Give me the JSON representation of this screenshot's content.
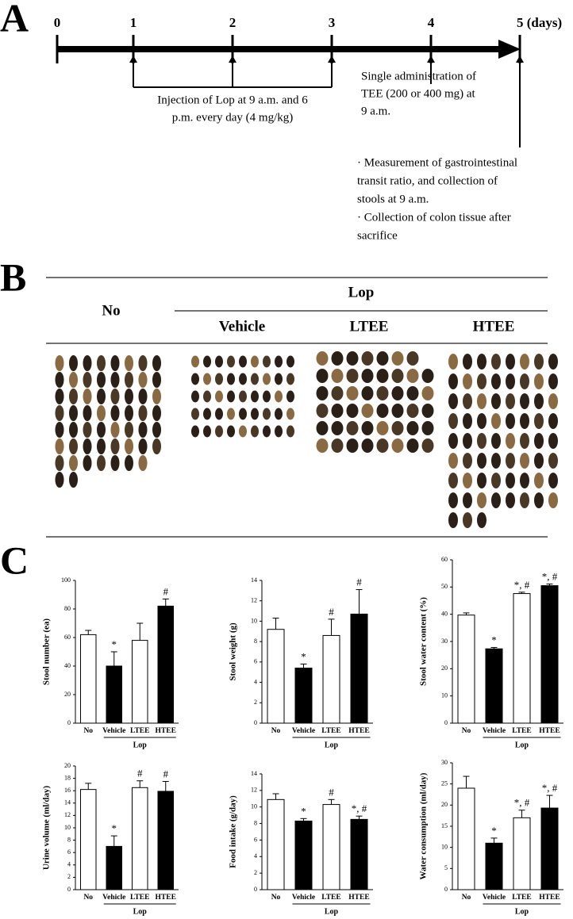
{
  "panel_labels": [
    "A",
    "B",
    "C"
  ],
  "timeline": {
    "days": [
      "0",
      "1",
      "2",
      "3",
      "4",
      "5 (days)"
    ],
    "injection": [
      "Injection  of Lop at 9 a.m. and 6",
      "p.m. every day (4 mg/kg)"
    ],
    "single": [
      "Single administration of",
      "TEE (200 or 400 mg) at",
      "9 a.m."
    ],
    "measurement": [
      "· Measurement of gastrointestinal",
      "transit ratio, and collection of",
      "stools at 9 a.m.",
      "· Collection of colon tissue after",
      "sacrifice"
    ]
  },
  "photo_table": {
    "no": "No",
    "lop": "Lop",
    "groups": [
      "Vehicle",
      "LTEE",
      "HTEE"
    ]
  },
  "chart_data": [
    {
      "type": "bar",
      "y_label": "Stool number (ea)",
      "categories": [
        "No",
        "Vehicle",
        "LTEE",
        "HTEE"
      ],
      "group_label": "Lop",
      "values": [
        62,
        40,
        58,
        82
      ],
      "errors": [
        3,
        10,
        12,
        5
      ],
      "colors": [
        "#ffffff",
        "#000000",
        "#ffffff",
        "#000000"
      ],
      "annotations": [
        null,
        "*",
        null,
        "#"
      ],
      "ylim": [
        0,
        100
      ],
      "yticks": [
        0,
        20,
        40,
        60,
        80,
        100
      ]
    },
    {
      "type": "bar",
      "y_label": "Stool weight (g)",
      "categories": [
        "No",
        "Vehicle",
        "LTEE",
        "HTEE"
      ],
      "group_label": "Lop",
      "values": [
        9.2,
        5.4,
        8.6,
        10.7
      ],
      "errors": [
        1.1,
        0.4,
        1.6,
        2.4
      ],
      "colors": [
        "#ffffff",
        "#000000",
        "#ffffff",
        "#000000"
      ],
      "annotations": [
        null,
        "*",
        "#",
        "#"
      ],
      "ylim": [
        0,
        14
      ],
      "yticks": [
        0,
        2,
        4,
        6,
        8,
        10,
        12,
        14
      ]
    },
    {
      "type": "bar",
      "y_label": "Stool water content (%)",
      "categories": [
        "No",
        "Vehicle",
        "LTEE",
        "HTEE"
      ],
      "group_label": "Lop",
      "values": [
        39.7,
        27.3,
        47.6,
        50.5
      ],
      "errors": [
        0.8,
        0.5,
        0.5,
        0.6
      ],
      "colors": [
        "#ffffff",
        "#000000",
        "#ffffff",
        "#000000"
      ],
      "annotations": [
        null,
        "*",
        "*, #",
        "*, #"
      ],
      "ylim": [
        0,
        60
      ],
      "yticks": [
        0,
        10,
        20,
        30,
        40,
        50,
        60
      ]
    },
    {
      "type": "bar",
      "y_label": "Urine volume (ml/day)",
      "categories": [
        "No",
        "Vehicle",
        "LTEE",
        "HTEE"
      ],
      "group_label": "Lop",
      "values": [
        16.2,
        7.0,
        16.5,
        15.9
      ],
      "errors": [
        1.0,
        1.7,
        1.1,
        1.6
      ],
      "colors": [
        "#ffffff",
        "#000000",
        "#ffffff",
        "#000000"
      ],
      "annotations": [
        null,
        "*",
        "#",
        "#"
      ],
      "ylim": [
        0,
        20
      ],
      "yticks": [
        0,
        2,
        4,
        6,
        8,
        10,
        12,
        14,
        16,
        18,
        20
      ]
    },
    {
      "type": "bar",
      "y_label": "Food intake (g/day)",
      "categories": [
        "No",
        "Vehicle",
        "LTEE",
        "HTEE"
      ],
      "group_label": "Lop",
      "values": [
        10.9,
        8.3,
        10.3,
        8.5
      ],
      "errors": [
        0.7,
        0.3,
        0.6,
        0.4
      ],
      "colors": [
        "#ffffff",
        "#000000",
        "#ffffff",
        "#000000"
      ],
      "annotations": [
        null,
        "*",
        "#",
        "*, #"
      ],
      "ylim": [
        0,
        14
      ],
      "yticks": [
        0,
        2,
        4,
        6,
        8,
        10,
        12,
        14
      ]
    },
    {
      "type": "bar",
      "y_label": "Water consumption (ml/day)",
      "categories": [
        "No",
        "Vehicle",
        "LTEE",
        "HTEE"
      ],
      "group_label": "Lop",
      "values": [
        24.0,
        11.0,
        17.0,
        19.3
      ],
      "errors": [
        2.8,
        1.2,
        1.8,
        3.0
      ],
      "colors": [
        "#ffffff",
        "#000000",
        "#ffffff",
        "#000000"
      ],
      "annotations": [
        null,
        "*",
        "*, #",
        "*, #"
      ],
      "ylim": [
        0,
        30
      ],
      "yticks": [
        0,
        5,
        10,
        15,
        20,
        25,
        30
      ]
    }
  ]
}
